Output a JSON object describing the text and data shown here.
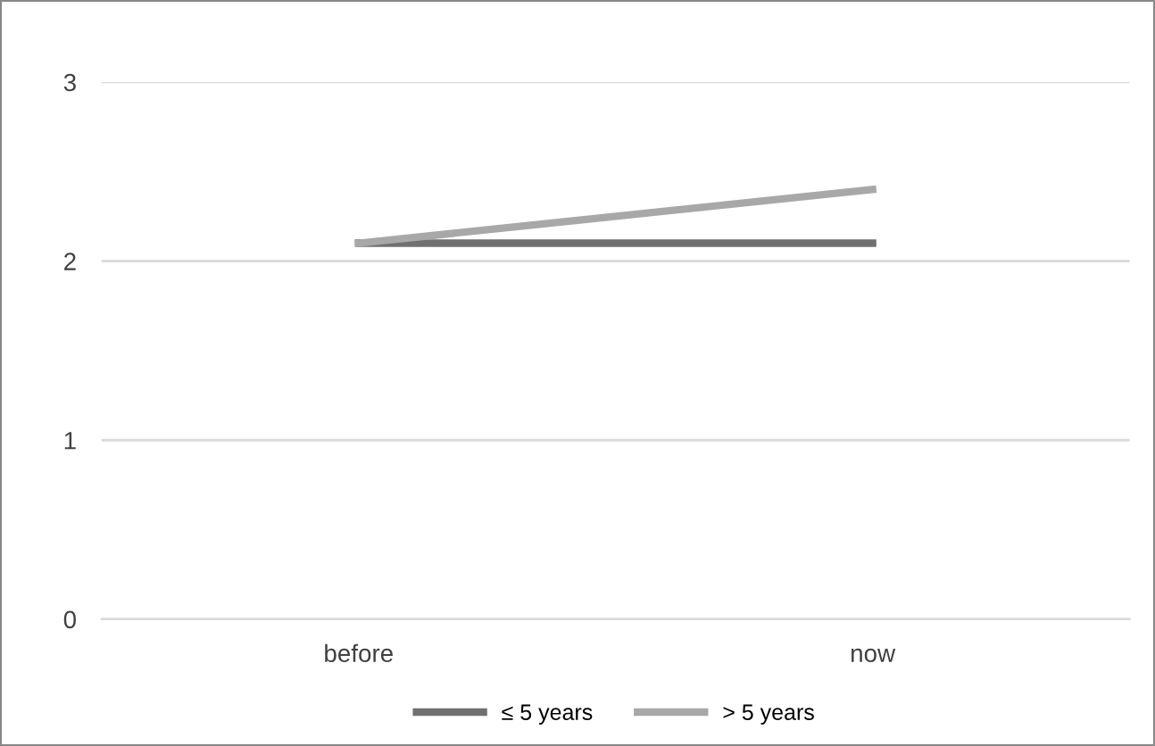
{
  "chart_data": {
    "type": "line",
    "categories": [
      "before",
      "now"
    ],
    "series": [
      {
        "name": "≤ 5 years",
        "color": "#707070",
        "values": [
          2.1,
          2.1
        ]
      },
      {
        "name": "> 5 years",
        "color": "#a8a8a8",
        "values": [
          2.1,
          2.4
        ]
      }
    ],
    "ylim": [
      0,
      3
    ],
    "yticks": [
      0,
      1,
      2,
      3
    ],
    "grid": "y",
    "legend": "bottom",
    "marker": "none",
    "line_style": "solid"
  }
}
